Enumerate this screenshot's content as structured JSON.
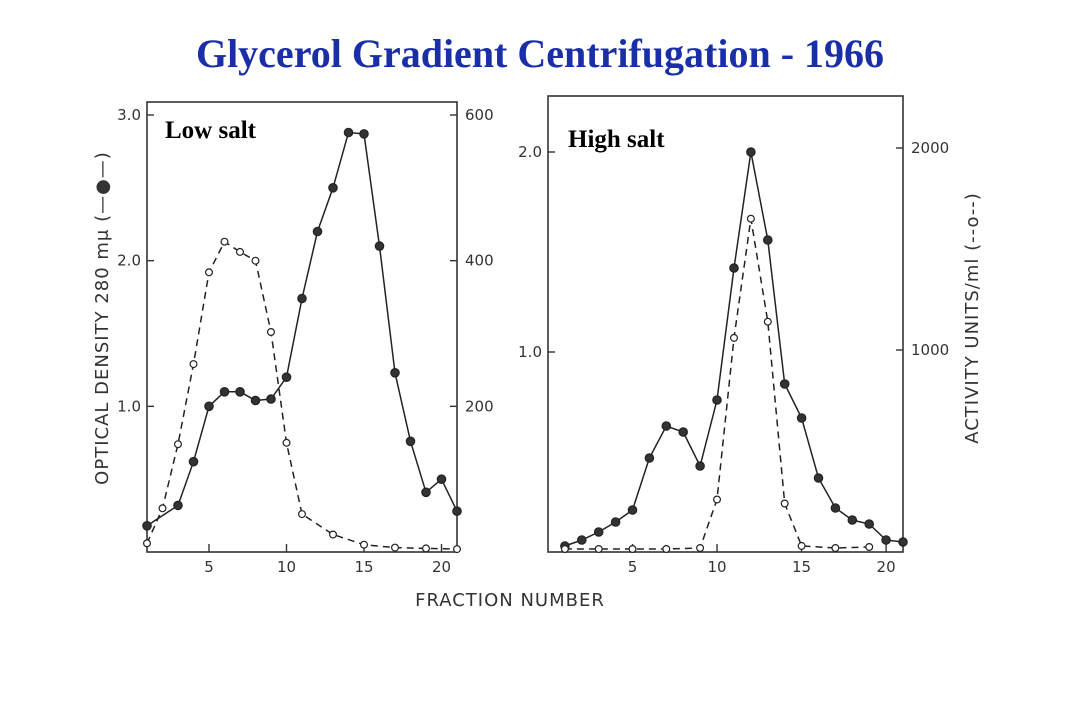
{
  "slide": {
    "title": "Glycerol Gradient Centrifugation - 1966"
  },
  "labels": {
    "left_axis": "OPTICAL DENSITY 280 mμ (—●—)",
    "right_axis": "ACTIVITY UNITS/ml (--o--)",
    "x_axis": "FRACTION NUMBER"
  },
  "chart_data": [
    {
      "type": "line",
      "panel": "Low salt",
      "x_ticks": [
        5,
        10,
        15,
        20
      ],
      "xlim": [
        1,
        21
      ],
      "y_left": {
        "ylim": [
          0,
          3.0
        ],
        "ticks": [
          "1.0",
          "2.0",
          "3.0"
        ]
      },
      "y_right": {
        "ylim": [
          0,
          600
        ],
        "ticks": [
          "200",
          "400",
          "600"
        ]
      },
      "series": [
        {
          "axis": "left",
          "style": "solid-filled",
          "x": [
            1,
            3,
            4,
            5,
            6,
            7,
            8,
            9,
            10,
            11,
            12,
            13,
            14,
            15,
            16,
            17,
            18,
            19,
            20,
            21
          ],
          "values": [
            0.18,
            0.32,
            0.62,
            1.0,
            1.1,
            1.1,
            1.04,
            1.05,
            1.2,
            1.74,
            2.2,
            2.5,
            2.88,
            2.87,
            2.1,
            1.23,
            0.76,
            0.41,
            0.5,
            0.28
          ]
        },
        {
          "axis": "right",
          "style": "dashed-open",
          "x": [
            1,
            2,
            3,
            4,
            5,
            6,
            7,
            8,
            9,
            10,
            11,
            13,
            15,
            17,
            19,
            21
          ],
          "values": [
            12,
            60,
            148,
            258,
            384,
            426,
            412,
            400,
            302,
            150,
            52,
            24,
            10,
            6,
            5,
            4
          ]
        }
      ]
    },
    {
      "type": "line",
      "panel": "High salt",
      "x_ticks": [
        5,
        10,
        15,
        20
      ],
      "xlim": [
        0,
        21
      ],
      "y_left": {
        "ylim": [
          0,
          2.0
        ],
        "ticks": [
          "1.0",
          "2.0"
        ]
      },
      "y_right": {
        "ylim": [
          0,
          2000
        ],
        "ticks": [
          "1000",
          "2000"
        ]
      },
      "series": [
        {
          "axis": "left",
          "style": "solid-filled",
          "x": [
            1,
            2,
            3,
            4,
            5,
            6,
            7,
            8,
            9,
            10,
            11,
            12,
            13,
            14,
            15,
            16,
            17,
            18,
            19,
            20,
            21
          ],
          "values": [
            0.03,
            0.06,
            0.1,
            0.15,
            0.21,
            0.47,
            0.63,
            0.6,
            0.43,
            0.76,
            1.42,
            2.0,
            1.56,
            0.84,
            0.67,
            0.37,
            0.22,
            0.16,
            0.14,
            0.06,
            0.05
          ]
        },
        {
          "axis": "right",
          "style": "dashed-open",
          "x": [
            1,
            3,
            5,
            7,
            9,
            10,
            11,
            12,
            13,
            14,
            15,
            17,
            19
          ],
          "values": [
            15,
            15,
            15,
            15,
            20,
            260,
            1060,
            1650,
            1140,
            240,
            30,
            20,
            25
          ]
        }
      ]
    }
  ]
}
